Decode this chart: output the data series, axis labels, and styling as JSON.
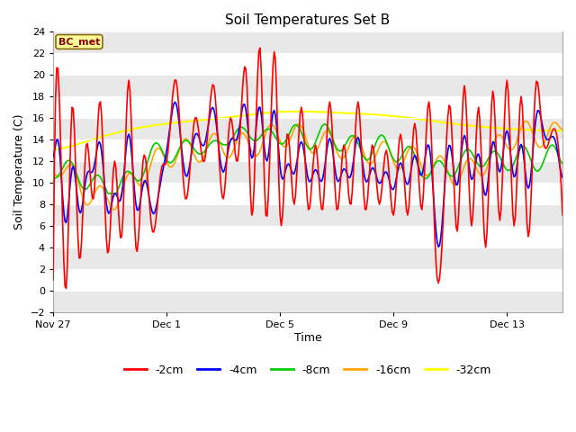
{
  "title": "Soil Temperatures Set B",
  "xlabel": "Time",
  "ylabel": "Soil Temperature (C)",
  "ylim": [
    -2,
    24
  ],
  "yticks": [
    -2,
    0,
    2,
    4,
    6,
    8,
    10,
    12,
    14,
    16,
    18,
    20,
    22,
    24
  ],
  "xtick_labels": [
    "Nov 27",
    "Dec 1",
    "Dec 5",
    "Dec 9",
    "Dec 13"
  ],
  "xtick_positions": [
    0,
    96,
    192,
    288,
    384
  ],
  "total_points": 432,
  "annotation_text": "BC_met",
  "annotation_color": "#8B0000",
  "annotation_bg": "#FFFF99",
  "annotation_border": "#8B6914",
  "fig_bg": "#ffffff",
  "plot_bg": "#ffffff",
  "band_color": "#e8e8e8",
  "line_colors": {
    "2cm": "#FF0000",
    "4cm": "#0000FF",
    "8cm": "#00CC00",
    "16cm": "#FFA500",
    "32cm": "#FFFF00"
  },
  "legend_labels": [
    "-2cm",
    "-4cm",
    "-8cm",
    "-16cm",
    "-32cm"
  ],
  "legend_colors": [
    "#FF0000",
    "#0000FF",
    "#00CC00",
    "#FFA500",
    "#FFFF00"
  ],
  "pts_per_day": 24
}
